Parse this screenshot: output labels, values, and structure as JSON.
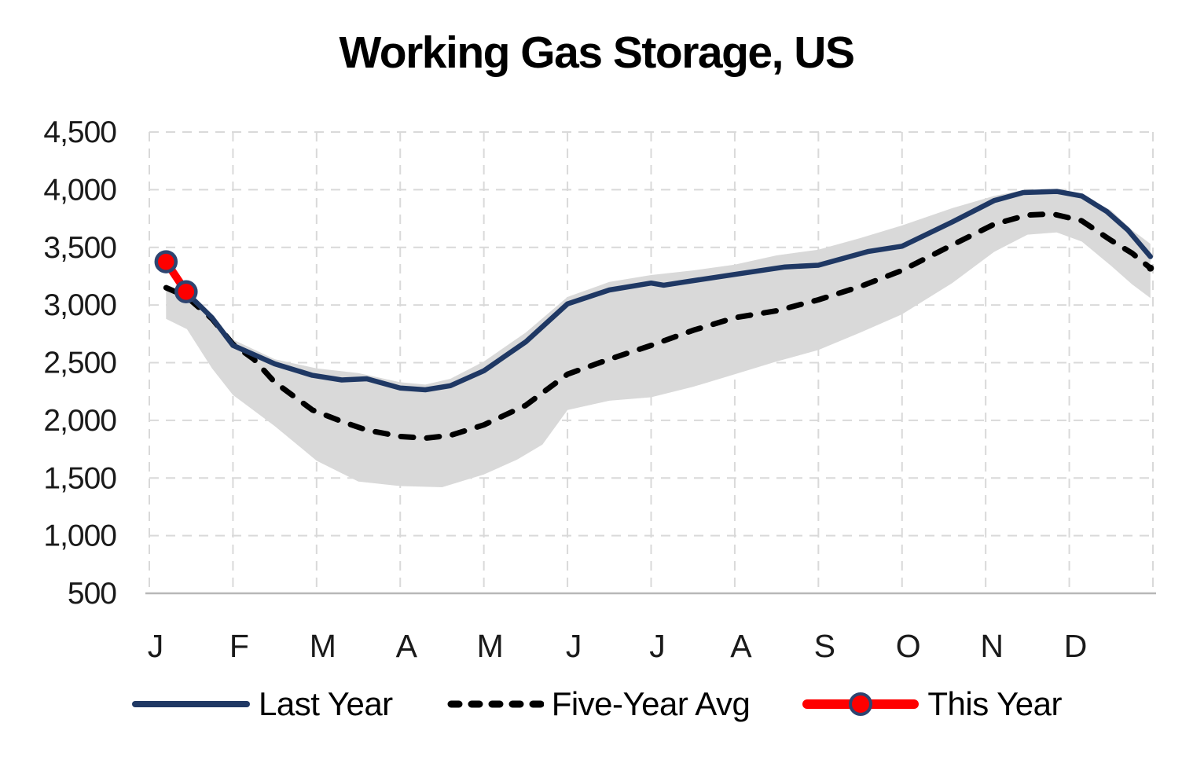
{
  "title": "Working Gas Storage, US",
  "colors": {
    "last_year": "#1f3864",
    "five_year_avg": "#000000",
    "this_year": "#fe0000",
    "this_year_marker_ring": "#2e4571",
    "band": "#d9d9d9",
    "gridline": "#d9d9d9",
    "axis_line": "#b7b7b7",
    "tick_text": "#1a1a1a"
  },
  "legend": {
    "items": [
      {
        "label": "Last Year",
        "swatch": "solid-line"
      },
      {
        "label": "Five-Year Avg",
        "swatch": "dashed-line"
      },
      {
        "label": "This Year",
        "swatch": "line-with-marker"
      }
    ]
  },
  "chart_data": {
    "type": "line",
    "title": "Working Gas Storage, US",
    "xlabel": "",
    "ylabel": "",
    "xlim": [
      0,
      12
    ],
    "ylim": [
      500,
      4500
    ],
    "grid": true,
    "legend_position": "bottom",
    "x_axis": {
      "unit": "months",
      "tick_labels": [
        "J",
        "F",
        "M",
        "A",
        "M",
        "J",
        "J",
        "A",
        "S",
        "O",
        "N",
        "D"
      ]
    },
    "y_axis": {
      "tick_values": [
        4500,
        4000,
        3500,
        3000,
        2500,
        2000,
        1500,
        1000,
        500
      ],
      "tick_labels": [
        "4,500",
        "4,000",
        "3,500",
        "3,000",
        "2,500",
        "2,000",
        "1,500",
        "1,000",
        "500"
      ]
    },
    "band": {
      "name": "Five-Year Range",
      "top": [
        [
          0.2,
          3180
        ],
        [
          0.45,
          3100
        ],
        [
          0.75,
          2900
        ],
        [
          1.0,
          2700
        ],
        [
          1.5,
          2530
        ],
        [
          2.0,
          2450
        ],
        [
          2.5,
          2410
        ],
        [
          3.0,
          2330
        ],
        [
          3.3,
          2310
        ],
        [
          3.6,
          2360
        ],
        [
          4.0,
          2510
        ],
        [
          4.5,
          2760
        ],
        [
          5.0,
          3070
        ],
        [
          5.5,
          3200
        ],
        [
          6.0,
          3260
        ],
        [
          6.5,
          3300
        ],
        [
          7.0,
          3350
        ],
        [
          7.5,
          3430
        ],
        [
          8.0,
          3480
        ],
        [
          8.5,
          3580
        ],
        [
          9.0,
          3690
        ],
        [
          9.6,
          3840
        ],
        [
          10.1,
          3945
        ],
        [
          10.45,
          3998
        ],
        [
          10.85,
          3995
        ],
        [
          11.15,
          3955
        ],
        [
          11.5,
          3820
        ],
        [
          11.75,
          3650
        ],
        [
          11.97,
          3530
        ]
      ],
      "bottom": [
        [
          0.2,
          2880
        ],
        [
          0.45,
          2790
        ],
        [
          0.75,
          2450
        ],
        [
          1.0,
          2220
        ],
        [
          1.5,
          1950
        ],
        [
          2.0,
          1650
        ],
        [
          2.5,
          1470
        ],
        [
          3.0,
          1430
        ],
        [
          3.5,
          1420
        ],
        [
          4.0,
          1530
        ],
        [
          4.4,
          1660
        ],
        [
          4.7,
          1790
        ],
        [
          5.0,
          2090
        ],
        [
          5.5,
          2170
        ],
        [
          6.0,
          2200
        ],
        [
          6.5,
          2290
        ],
        [
          7.0,
          2400
        ],
        [
          7.5,
          2510
        ],
        [
          8.0,
          2610
        ],
        [
          8.5,
          2760
        ],
        [
          9.0,
          2920
        ],
        [
          9.6,
          3190
        ],
        [
          10.1,
          3460
        ],
        [
          10.5,
          3610
        ],
        [
          10.85,
          3630
        ],
        [
          11.15,
          3550
        ],
        [
          11.5,
          3340
        ],
        [
          11.75,
          3180
        ],
        [
          11.97,
          3060
        ]
      ]
    },
    "series": [
      {
        "name": "Last Year",
        "style": "solid",
        "color": "#1f3864",
        "points": [
          [
            0.2,
            3370
          ],
          [
            0.44,
            3110
          ],
          [
            0.75,
            2890
          ],
          [
            1.0,
            2650
          ],
          [
            1.25,
            2570
          ],
          [
            1.5,
            2490
          ],
          [
            1.95,
            2390
          ],
          [
            2.3,
            2350
          ],
          [
            2.6,
            2360
          ],
          [
            3.0,
            2280
          ],
          [
            3.3,
            2265
          ],
          [
            3.6,
            2300
          ],
          [
            4.0,
            2430
          ],
          [
            4.5,
            2680
          ],
          [
            5.0,
            3010
          ],
          [
            5.5,
            3130
          ],
          [
            6.0,
            3190
          ],
          [
            6.15,
            3172
          ],
          [
            6.4,
            3200
          ],
          [
            7.0,
            3265
          ],
          [
            7.6,
            3330
          ],
          [
            8.0,
            3345
          ],
          [
            8.6,
            3465
          ],
          [
            9.0,
            3510
          ],
          [
            9.6,
            3720
          ],
          [
            10.1,
            3905
          ],
          [
            10.45,
            3975
          ],
          [
            10.85,
            3985
          ],
          [
            11.15,
            3945
          ],
          [
            11.45,
            3810
          ],
          [
            11.7,
            3650
          ],
          [
            11.97,
            3420
          ]
        ]
      },
      {
        "name": "Five-Year Avg",
        "style": "dashed",
        "color": "#000000",
        "end_dot": true,
        "points": [
          [
            0.2,
            3150
          ],
          [
            0.44,
            3075
          ],
          [
            0.75,
            2880
          ],
          [
            1.0,
            2660
          ],
          [
            1.25,
            2530
          ],
          [
            1.5,
            2330
          ],
          [
            1.95,
            2090
          ],
          [
            2.3,
            1990
          ],
          [
            2.6,
            1915
          ],
          [
            3.0,
            1860
          ],
          [
            3.3,
            1845
          ],
          [
            3.6,
            1870
          ],
          [
            4.0,
            1960
          ],
          [
            4.5,
            2130
          ],
          [
            5.0,
            2400
          ],
          [
            5.5,
            2530
          ],
          [
            6.0,
            2650
          ],
          [
            6.5,
            2780
          ],
          [
            7.0,
            2890
          ],
          [
            7.5,
            2950
          ],
          [
            8.0,
            3045
          ],
          [
            8.5,
            3160
          ],
          [
            9.0,
            3300
          ],
          [
            9.6,
            3520
          ],
          [
            10.1,
            3700
          ],
          [
            10.5,
            3780
          ],
          [
            10.8,
            3790
          ],
          [
            11.15,
            3730
          ],
          [
            11.5,
            3560
          ],
          [
            11.75,
            3450
          ],
          [
            11.97,
            3320
          ]
        ]
      },
      {
        "name": "This Year",
        "style": "solid-markers",
        "color": "#fe0000",
        "points": [
          [
            0.2,
            3375
          ],
          [
            0.44,
            3115
          ]
        ]
      }
    ]
  }
}
